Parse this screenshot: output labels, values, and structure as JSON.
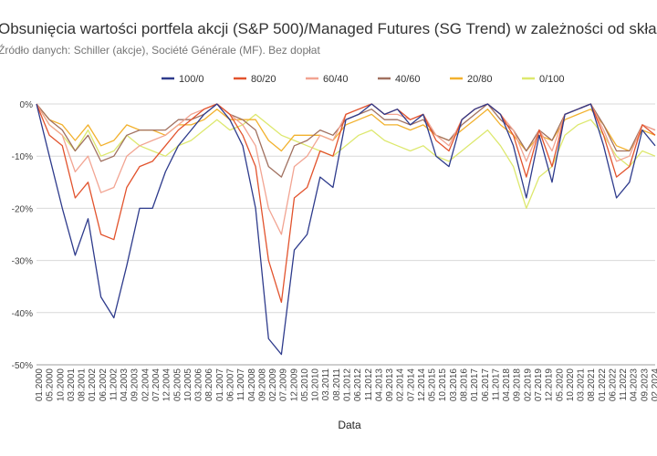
{
  "chart_data": {
    "type": "line",
    "title": "Obsunięcia wartości portfela akcji (S&P 500)/Managed Futures (SG Trend) w zależności od składu",
    "subtitle": "Źródło danych: Schiller (akcje), Société Générale (MF). Bez dopłat",
    "xlabel": "Data",
    "ylabel": "",
    "ylim": [
      -50,
      0
    ],
    "y_ticks": [
      "0%",
      "-10%",
      "-20%",
      "-30%",
      "-40%",
      "-50%"
    ],
    "x_ticks": [
      "01.2000",
      "05.2000",
      "10.2000",
      "03.2001",
      "08.2001",
      "01.2002",
      "06.2002",
      "11.2002",
      "04.2003",
      "09.2003",
      "02.2004",
      "07.2004",
      "12.2004",
      "05.2005",
      "10.2005",
      "03.2006",
      "08.2006",
      "01.2007",
      "06.2007",
      "11.2007",
      "04.2008",
      "09.2008",
      "02.2009",
      "07.2009",
      "12.2009",
      "05.2010",
      "10.2010",
      "03.2011",
      "08.2011",
      "01.2012",
      "06.2012",
      "11.2012",
      "04.2013",
      "09.2013",
      "02.2014",
      "07.2014",
      "12.2014",
      "05.2015",
      "10.2015",
      "03.2016",
      "08.2016",
      "01.2017",
      "06.2017",
      "11.2017",
      "04.2018",
      "09.2018",
      "02.2019",
      "07.2019",
      "12.2019",
      "05.2020",
      "10.2020",
      "03.2021",
      "08.2021",
      "01.2022",
      "06.2022",
      "11.2022",
      "04.2023",
      "09.2023",
      "02.2024"
    ],
    "grid": true,
    "legend_position": "top",
    "x": [
      2000.0,
      2000.5,
      2001.0,
      2001.5,
      2002.0,
      2002.5,
      2003.0,
      2003.5,
      2004.0,
      2004.5,
      2005.0,
      2005.5,
      2006.0,
      2006.5,
      2007.0,
      2007.5,
      2008.0,
      2008.5,
      2009.0,
      2009.5,
      2010.0,
      2010.5,
      2011.0,
      2011.5,
      2012.0,
      2012.5,
      2013.0,
      2013.5,
      2014.0,
      2014.5,
      2015.0,
      2015.5,
      2016.0,
      2016.5,
      2017.0,
      2017.5,
      2018.0,
      2018.5,
      2019.0,
      2019.5,
      2020.0,
      2020.5,
      2021.0,
      2021.5,
      2022.0,
      2022.5,
      2023.0,
      2023.5,
      2024.0
    ],
    "series": [
      {
        "name": "100/0",
        "color": "#2e3b8c",
        "values": [
          0,
          -10,
          -20,
          -29,
          -22,
          -37,
          -41,
          -31,
          -20,
          -20,
          -13,
          -8,
          -5,
          -2,
          0,
          -3,
          -8,
          -20,
          -45,
          -48,
          -28,
          -25,
          -14,
          -16,
          -3,
          -2,
          0,
          -2,
          -1,
          -4,
          -2,
          -10,
          -12,
          -3,
          -1,
          0,
          -2,
          -8,
          -18,
          -6,
          -15,
          -2,
          -1,
          0,
          -8,
          -18,
          -15,
          -5,
          -8
        ]
      },
      {
        "name": "80/20",
        "color": "#e2532d",
        "values": [
          0,
          -6,
          -8,
          -18,
          -15,
          -25,
          -26,
          -16,
          -12,
          -11,
          -8,
          -5,
          -3,
          -1,
          0,
          -2,
          -6,
          -12,
          -30,
          -38,
          -18,
          -16,
          -9,
          -10,
          -2,
          -1,
          0,
          -2,
          -1,
          -3,
          -2,
          -7,
          -9,
          -3,
          -1,
          0,
          -2,
          -6,
          -14,
          -5,
          -12,
          -2,
          -1,
          0,
          -6,
          -14,
          -12,
          -4,
          -6
        ]
      },
      {
        "name": "60/40",
        "color": "#f2a492",
        "values": [
          0,
          -4,
          -6,
          -13,
          -10,
          -17,
          -16,
          -10,
          -8,
          -7,
          -6,
          -4,
          -2,
          -1,
          0,
          -2,
          -4,
          -8,
          -20,
          -25,
          -12,
          -10,
          -6,
          -7,
          -2,
          -1,
          0,
          -2,
          -2,
          -3,
          -2,
          -6,
          -8,
          -3,
          -1,
          0,
          -2,
          -5,
          -11,
          -5,
          -9,
          -2,
          -1,
          0,
          -5,
          -11,
          -10,
          -4,
          -5
        ]
      },
      {
        "name": "40/60",
        "color": "#a17160",
        "values": [
          0,
          -3,
          -5,
          -9,
          -6,
          -11,
          -10,
          -6,
          -5,
          -5,
          -5,
          -3,
          -3,
          -2,
          0,
          -2,
          -3,
          -5,
          -12,
          -14,
          -8,
          -7,
          -5,
          -6,
          -3,
          -2,
          -1,
          -3,
          -3,
          -4,
          -3,
          -6,
          -7,
          -4,
          -2,
          0,
          -3,
          -5,
          -9,
          -5,
          -7,
          -2,
          -1,
          0,
          -4,
          -9,
          -9,
          -4,
          -5
        ]
      },
      {
        "name": "20/80",
        "color": "#f2b12d",
        "values": [
          0,
          -3,
          -4,
          -7,
          -4,
          -8,
          -7,
          -4,
          -5,
          -5,
          -6,
          -4,
          -4,
          -3,
          -1,
          -3,
          -3,
          -3,
          -7,
          -9,
          -6,
          -6,
          -6,
          -7,
          -4,
          -3,
          -2,
          -4,
          -4,
          -5,
          -4,
          -6,
          -7,
          -5,
          -3,
          -1,
          -4,
          -6,
          -9,
          -6,
          -7,
          -3,
          -2,
          -1,
          -4,
          -8,
          -9,
          -5,
          -6
        ]
      },
      {
        "name": "0/100",
        "color": "#dde86e",
        "values": [
          0,
          -4,
          -6,
          -9,
          -5,
          -10,
          -9,
          -6,
          -8,
          -9,
          -10,
          -8,
          -7,
          -5,
          -3,
          -5,
          -4,
          -2,
          -4,
          -6,
          -7,
          -8,
          -9,
          -10,
          -8,
          -6,
          -5,
          -7,
          -8,
          -9,
          -8,
          -10,
          -11,
          -9,
          -7,
          -5,
          -8,
          -12,
          -20,
          -14,
          -12,
          -6,
          -4,
          -3,
          -6,
          -10,
          -12,
          -9,
          -10
        ]
      }
    ]
  }
}
